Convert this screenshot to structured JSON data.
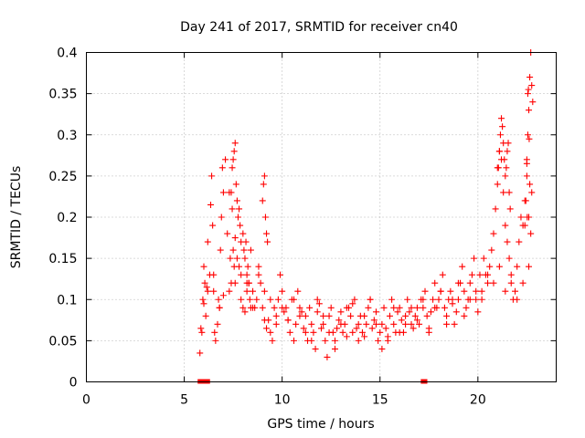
{
  "chart_data": {
    "type": "scatter",
    "title": "Day 241 of 2017, SRMTID for receiver cn40",
    "xlabel": "GPS time / hours",
    "ylabel": "SRMTID / TECUs",
    "xlim": [
      0,
      24
    ],
    "ylim": [
      0,
      0.4
    ],
    "xticks": [
      0,
      5,
      10,
      15,
      20
    ],
    "xtick_labels": [
      "0",
      "5",
      "10",
      "15",
      "20"
    ],
    "yticks": [
      0,
      0.05,
      0.1,
      0.15,
      0.2,
      0.25,
      0.3,
      0.35,
      0.4
    ],
    "ytick_labels": [
      "0",
      "0.05",
      "0.1",
      "0.15",
      "0.2",
      "0.25",
      "0.3",
      "0.35",
      "0.4"
    ],
    "grid": true,
    "marker": "plus",
    "series": [
      {
        "name": "SRMTID",
        "color": "#ff0000",
        "x": [
          5.8,
          5.85,
          5.9,
          5.95,
          6.0,
          6.05,
          6.1,
          6.15,
          6.2,
          6.3,
          6.35,
          6.4,
          6.45,
          6.5,
          6.55,
          6.6,
          6.7,
          6.75,
          6.8,
          6.85,
          6.9,
          6.95,
          7.0,
          7.1,
          7.2,
          7.3,
          7.35,
          7.4,
          7.45,
          7.5,
          7.55,
          7.6,
          7.7,
          7.8,
          7.9,
          8.0,
          8.1,
          8.2,
          8.3,
          8.4,
          8.5,
          8.6,
          8.7,
          8.8,
          8.9,
          9.0,
          9.1,
          9.2,
          9.3,
          9.4,
          9.5,
          9.6,
          9.7,
          9.8,
          9.9,
          10.0,
          10.1,
          10.2,
          10.3,
          10.4,
          10.5,
          10.6,
          10.7,
          10.8,
          10.9,
          11.0,
          11.1,
          11.2,
          11.3,
          11.4,
          11.5,
          11.6,
          11.7,
          11.8,
          11.9,
          12.0,
          12.1,
          12.2,
          12.3,
          12.4,
          12.5,
          12.6,
          12.7,
          12.8,
          12.9,
          13.0,
          13.1,
          13.2,
          13.3,
          13.4,
          13.5,
          13.6,
          13.7,
          13.8,
          13.9,
          14.0,
          14.1,
          14.2,
          14.3,
          14.4,
          14.5,
          14.6,
          14.7,
          14.8,
          14.9,
          15.0,
          15.1,
          15.2,
          15.3,
          15.4,
          15.5,
          15.6,
          15.7,
          15.8,
          15.9,
          16.0,
          16.1,
          16.2,
          16.3,
          16.4,
          16.5,
          16.6,
          16.7,
          16.8,
          16.9,
          17.0,
          17.1,
          17.2,
          17.3,
          17.4,
          17.5,
          17.6,
          17.7,
          17.8,
          17.9,
          18.0,
          18.1,
          18.2,
          18.3,
          18.4,
          18.5,
          18.6,
          18.7,
          18.8,
          18.9,
          19.0,
          19.1,
          19.2,
          19.3,
          19.4,
          19.5,
          19.6,
          19.7,
          19.8,
          19.9,
          20.0,
          20.1,
          20.2,
          20.3,
          20.4,
          20.5,
          20.6,
          20.7,
          20.8,
          20.9,
          21.0,
          21.1,
          21.2,
          21.3,
          21.4,
          21.5,
          21.6,
          21.7,
          21.8,
          21.9,
          22.0,
          22.1,
          22.2,
          22.3,
          22.4,
          22.5,
          22.55,
          22.6,
          22.65,
          22.7,
          22.75,
          6.0,
          6.2,
          6.5,
          6.8,
          7.0,
          7.3,
          7.6,
          7.9,
          8.2,
          8.5,
          8.8,
          9.1,
          9.4,
          9.7,
          10.0,
          10.3,
          10.6,
          10.9,
          11.2,
          11.5,
          11.8,
          12.1,
          12.4,
          12.7,
          13.0,
          13.3,
          13.6,
          13.9,
          14.2,
          14.5,
          14.8,
          15.1,
          15.4,
          15.7,
          16.0,
          16.3,
          16.6,
          16.9,
          17.2,
          17.5,
          17.8,
          18.1,
          18.4,
          18.7,
          19.0,
          19.3,
          19.6,
          19.9,
          20.2,
          20.5,
          20.8,
          21.1,
          21.4,
          21.7,
          22.0,
          22.3,
          22.6,
          7.4,
          7.45,
          7.5,
          7.55,
          7.6,
          7.65,
          7.7,
          7.75,
          7.8,
          7.85,
          7.9,
          8.0,
          8.05,
          8.1,
          8.15,
          8.2,
          8.25,
          8.3,
          8.35,
          8.4,
          9.0,
          9.05,
          9.1,
          9.15,
          9.2,
          9.25,
          21.0,
          21.05,
          21.1,
          21.15,
          21.2,
          21.25,
          21.3,
          21.35,
          21.4,
          21.45,
          21.5,
          21.55,
          21.6,
          21.65,
          22.4,
          22.45,
          22.5,
          22.55,
          22.6,
          22.65,
          22.7,
          22.75,
          22.8,
          22.58,
          22.62,
          22.5,
          22.52
        ],
        "y": [
          0.035,
          0.065,
          0.06,
          0.1,
          0.14,
          0.12,
          0.08,
          0.115,
          0.17,
          0.13,
          0.215,
          0.25,
          0.19,
          0.11,
          0.06,
          0.05,
          0.07,
          0.1,
          0.09,
          0.16,
          0.2,
          0.26,
          0.23,
          0.27,
          0.18,
          0.23,
          0.15,
          0.12,
          0.21,
          0.16,
          0.14,
          0.175,
          0.15,
          0.14,
          0.13,
          0.09,
          0.085,
          0.11,
          0.12,
          0.16,
          0.11,
          0.09,
          0.1,
          0.14,
          0.12,
          0.09,
          0.075,
          0.065,
          0.075,
          0.06,
          0.05,
          0.09,
          0.07,
          0.1,
          0.13,
          0.11,
          0.085,
          0.09,
          0.075,
          0.06,
          0.1,
          0.05,
          0.07,
          0.11,
          0.09,
          0.085,
          0.065,
          0.08,
          0.05,
          0.09,
          0.07,
          0.06,
          0.04,
          0.085,
          0.095,
          0.065,
          0.07,
          0.05,
          0.03,
          0.08,
          0.09,
          0.06,
          0.05,
          0.065,
          0.075,
          0.085,
          0.06,
          0.07,
          0.055,
          0.09,
          0.08,
          0.095,
          0.1,
          0.065,
          0.07,
          0.08,
          0.06,
          0.055,
          0.07,
          0.09,
          0.1,
          0.065,
          0.075,
          0.085,
          0.05,
          0.06,
          0.07,
          0.09,
          0.065,
          0.055,
          0.08,
          0.1,
          0.07,
          0.06,
          0.085,
          0.09,
          0.075,
          0.06,
          0.07,
          0.1,
          0.085,
          0.09,
          0.065,
          0.08,
          0.075,
          0.07,
          0.1,
          0.09,
          0.11,
          0.08,
          0.065,
          0.085,
          0.1,
          0.12,
          0.09,
          0.1,
          0.11,
          0.13,
          0.09,
          0.08,
          0.1,
          0.11,
          0.095,
          0.07,
          0.085,
          0.1,
          0.12,
          0.14,
          0.11,
          0.09,
          0.1,
          0.12,
          0.13,
          0.15,
          0.1,
          0.085,
          0.13,
          0.11,
          0.15,
          0.13,
          0.12,
          0.14,
          0.16,
          0.18,
          0.21,
          0.26,
          0.28,
          0.27,
          0.23,
          0.19,
          0.17,
          0.15,
          0.12,
          0.1,
          0.11,
          0.14,
          0.17,
          0.2,
          0.19,
          0.22,
          0.27,
          0.35,
          0.2,
          0.24,
          0.18,
          0.23,
          0.095,
          0.11,
          0.13,
          0.09,
          0.105,
          0.11,
          0.12,
          0.1,
          0.12,
          0.09,
          0.13,
          0.11,
          0.1,
          0.08,
          0.09,
          0.075,
          0.1,
          0.08,
          0.06,
          0.05,
          0.1,
          0.08,
          0.06,
          0.04,
          0.07,
          0.09,
          0.06,
          0.05,
          0.08,
          0.1,
          0.07,
          0.04,
          0.05,
          0.09,
          0.06,
          0.08,
          0.07,
          0.09,
          0.1,
          0.06,
          0.09,
          0.11,
          0.07,
          0.1,
          0.12,
          0.08,
          0.1,
          0.11,
          0.1,
          0.13,
          0.12,
          0.14,
          0.11,
          0.13,
          0.1,
          0.12,
          0.14,
          0.23,
          0.26,
          0.27,
          0.28,
          0.29,
          0.24,
          0.22,
          0.2,
          0.21,
          0.19,
          0.17,
          0.18,
          0.16,
          0.15,
          0.17,
          0.13,
          0.14,
          0.12,
          0.1,
          0.09,
          0.22,
          0.24,
          0.25,
          0.2,
          0.18,
          0.17,
          0.24,
          0.26,
          0.28,
          0.3,
          0.32,
          0.31,
          0.29,
          0.27,
          0.25,
          0.26,
          0.28,
          0.29,
          0.23,
          0.21,
          0.19,
          0.22,
          0.25,
          0.3,
          0.33,
          0.37,
          0.4,
          0.36,
          0.34,
          0.355,
          0.295,
          0.265,
          0.2
        ]
      }
    ],
    "zero_markers": [
      5.8,
      6.0,
      6.1,
      6.2,
      17.2,
      17.3
    ]
  }
}
